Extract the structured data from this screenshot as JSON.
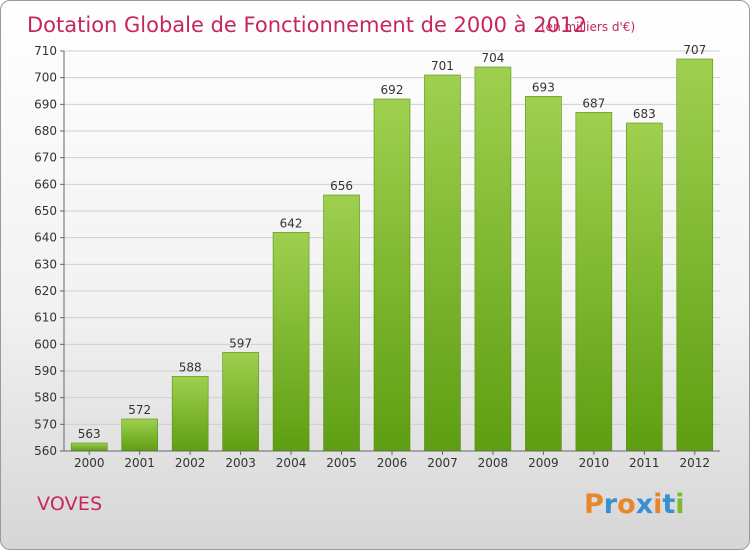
{
  "chart_data": {
    "type": "bar",
    "title": "Dotation Globale de Fonctionnement de 2000 à 2012",
    "subtitle": "(en milliers d'€)",
    "xlabel": "",
    "ylabel": "",
    "categories": [
      "2000",
      "2001",
      "2002",
      "2003",
      "2004",
      "2005",
      "2006",
      "2007",
      "2008",
      "2009",
      "2010",
      "2011",
      "2012"
    ],
    "values": [
      563,
      572,
      588,
      597,
      642,
      656,
      692,
      701,
      704,
      693,
      687,
      683,
      707
    ],
    "ylim": [
      560,
      710
    ],
    "yticks": [
      560,
      570,
      580,
      590,
      600,
      610,
      620,
      630,
      640,
      650,
      660,
      670,
      680,
      690,
      700,
      710
    ],
    "grid": true,
    "bar_color": "#7dbb2c"
  },
  "commune": "VOVES",
  "logo": {
    "text": "Proxiti",
    "letter_colors": [
      "#e8862a",
      "#3a8fd1",
      "#e8862a",
      "#3a8fd1",
      "#e8862a",
      "#3a8fd1",
      "#7dbb2c"
    ]
  }
}
